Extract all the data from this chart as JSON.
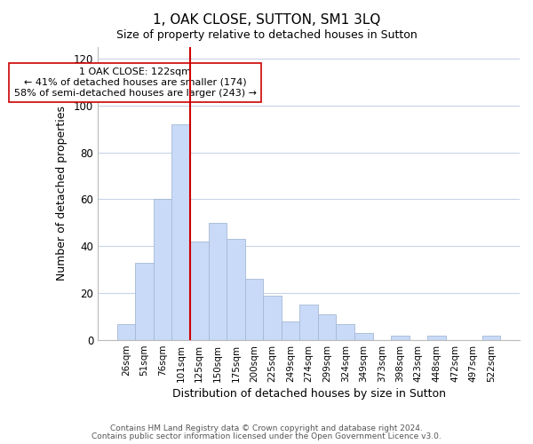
{
  "title": "1, OAK CLOSE, SUTTON, SM1 3LQ",
  "subtitle": "Size of property relative to detached houses in Sutton",
  "xlabel": "Distribution of detached houses by size in Sutton",
  "ylabel": "Number of detached properties",
  "bar_labels": [
    "26sqm",
    "51sqm",
    "76sqm",
    "101sqm",
    "125sqm",
    "150sqm",
    "175sqm",
    "200sqm",
    "225sqm",
    "249sqm",
    "274sqm",
    "299sqm",
    "324sqm",
    "349sqm",
    "373sqm",
    "398sqm",
    "423sqm",
    "448sqm",
    "472sqm",
    "497sqm",
    "522sqm"
  ],
  "bar_values": [
    7,
    33,
    60,
    92,
    42,
    50,
    43,
    26,
    19,
    8,
    15,
    11,
    7,
    3,
    0,
    2,
    0,
    2,
    0,
    0,
    2
  ],
  "bar_color": "#c9daf8",
  "bar_edge_color": "#a4b8d4",
  "vline_after_index": 3,
  "vline_color": "#cc0000",
  "annotation_text": "1 OAK CLOSE: 122sqm\n← 41% of detached houses are smaller (174)\n58% of semi-detached houses are larger (243) →",
  "annotation_box_edgecolor": "#cc0000",
  "annotation_fontsize": 8.0,
  "ylim": [
    0,
    125
  ],
  "yticks": [
    0,
    20,
    40,
    60,
    80,
    100,
    120
  ],
  "footer1": "Contains HM Land Registry data © Crown copyright and database right 2024.",
  "footer2": "Contains public sector information licensed under the Open Government Licence v3.0.",
  "background_color": "#ffffff",
  "grid_color": "#c8d4e8"
}
